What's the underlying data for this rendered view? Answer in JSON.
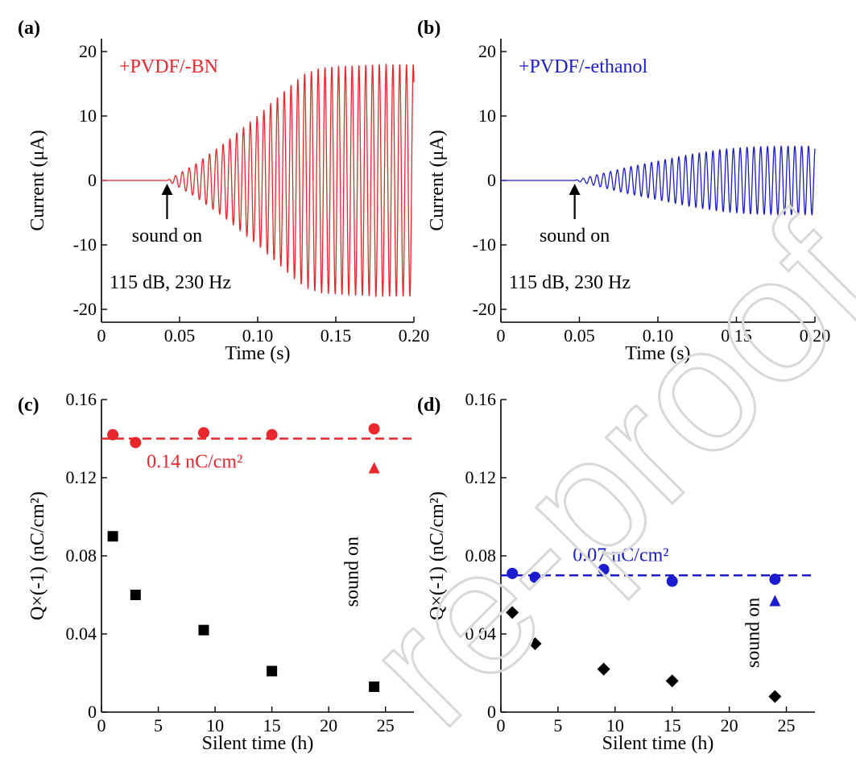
{
  "chart_data": [
    {
      "panel": "(a)",
      "type": "line",
      "xlabel": "Time (s)",
      "ylabel": "Current (μA)",
      "xlim": [
        0,
        0.2
      ],
      "ylim": [
        -22,
        22
      ],
      "xticks": [
        "0",
        "0.05",
        "0.10",
        "0.15",
        "0.20"
      ],
      "xtick_values": [
        0,
        0.05,
        0.1,
        0.15,
        0.2
      ],
      "yticks": [
        "-20",
        "-10",
        "0",
        "10",
        "20"
      ],
      "ytick_values": [
        -20,
        -10,
        0,
        10,
        20
      ],
      "color": "#e8262b",
      "series": [
        {
          "name": "+PVDF/-BN",
          "frequency_hz": 230,
          "onset_s": 0.042,
          "envelope": {
            "t": [
              0.042,
              0.06,
              0.08,
              0.1,
              0.12,
              0.13,
              0.14,
              0.16,
              0.18,
              0.2
            ],
            "amp": [
              0,
              2.5,
              6.0,
              10.0,
              14.5,
              16.5,
              17.5,
              17.8,
              18.0,
              18.0
            ]
          }
        }
      ],
      "annotations": [
        "sound on",
        "115 dB, 230 Hz"
      ],
      "arrow_at_x": 0.042
    },
    {
      "panel": "(b)",
      "type": "line",
      "xlabel": "Time (s)",
      "ylabel": "Current (μA)",
      "xlim": [
        0,
        0.2
      ],
      "ylim": [
        -22,
        22
      ],
      "xticks": [
        "0",
        "0.05",
        "0.10",
        "0.15",
        "0.20"
      ],
      "xtick_values": [
        0,
        0.05,
        0.1,
        0.15,
        0.2
      ],
      "yticks": [
        "-20",
        "-10",
        "0",
        "10",
        "20"
      ],
      "ytick_values": [
        -20,
        -10,
        0,
        10,
        20
      ],
      "color": "#1c1ccf",
      "series": [
        {
          "name": "+PVDF/-ethanol",
          "frequency_hz": 230,
          "onset_s": 0.047,
          "envelope": {
            "t": [
              0.047,
              0.06,
              0.08,
              0.1,
              0.12,
              0.14,
              0.16,
              0.18,
              0.2
            ],
            "amp": [
              0,
              0.8,
              2.0,
              3.0,
              4.0,
              4.8,
              5.2,
              5.3,
              5.3
            ]
          }
        }
      ],
      "annotations": [
        "sound on",
        "115 dB, 230 Hz"
      ],
      "arrow_at_x": 0.047
    },
    {
      "panel": "(c)",
      "type": "scatter",
      "xlabel": "Silent time (h)",
      "ylabel": "Q×(-1) (nC/cm²)",
      "xlim": [
        0,
        27.5
      ],
      "ylim": [
        0,
        0.16
      ],
      "xticks": [
        "0",
        "5",
        "10",
        "15",
        "20",
        "25"
      ],
      "xtick_values": [
        0,
        5,
        10,
        15,
        20,
        25
      ],
      "yticks": [
        "0",
        "0.04",
        "0.08",
        "0.12",
        "0.16"
      ],
      "ytick_values": [
        0,
        0.04,
        0.08,
        0.12,
        0.16
      ],
      "series": [
        {
          "marker": "circle",
          "color": "#e8262b",
          "x": [
            1,
            3,
            9,
            15,
            24
          ],
          "y": [
            0.142,
            0.138,
            0.143,
            0.142,
            0.145
          ]
        },
        {
          "marker": "square",
          "color": "#000000",
          "x": [
            1,
            3,
            9,
            15,
            24
          ],
          "y": [
            0.09,
            0.06,
            0.042,
            0.021,
            0.013
          ]
        }
      ],
      "reference_line": {
        "y": 0.14,
        "color": "#e8262b",
        "label": "0.14 nC/cm²"
      },
      "annotations": [
        "sound on"
      ],
      "arrow_at_x": 24
    },
    {
      "panel": "(d)",
      "type": "scatter",
      "xlabel": "Silent time (h)",
      "ylabel": "Q×(-1) (nC/cm²)",
      "xlim": [
        0,
        27.5
      ],
      "ylim": [
        0,
        0.16
      ],
      "xticks": [
        "0",
        "5",
        "10",
        "15",
        "20",
        "25"
      ],
      "xtick_values": [
        0,
        5,
        10,
        15,
        20,
        25
      ],
      "yticks": [
        "0",
        "0.04",
        "0.08",
        "0.12",
        "0.16"
      ],
      "ytick_values": [
        0,
        0.04,
        0.08,
        0.12,
        0.16
      ],
      "series": [
        {
          "marker": "circle",
          "color": "#1c1ccf",
          "x": [
            1,
            3,
            9,
            15,
            24
          ],
          "y": [
            0.071,
            0.069,
            0.073,
            0.067,
            0.068
          ]
        },
        {
          "marker": "diamond",
          "color": "#000000",
          "x": [
            1,
            3,
            9,
            15,
            24
          ],
          "y": [
            0.051,
            0.035,
            0.022,
            0.016,
            0.008
          ]
        }
      ],
      "reference_line": {
        "y": 0.07,
        "color": "#1c1ccf",
        "label": "0.07 nC/cm²"
      },
      "annotations": [
        "sound on"
      ],
      "arrow_at_x": 24
    }
  ]
}
